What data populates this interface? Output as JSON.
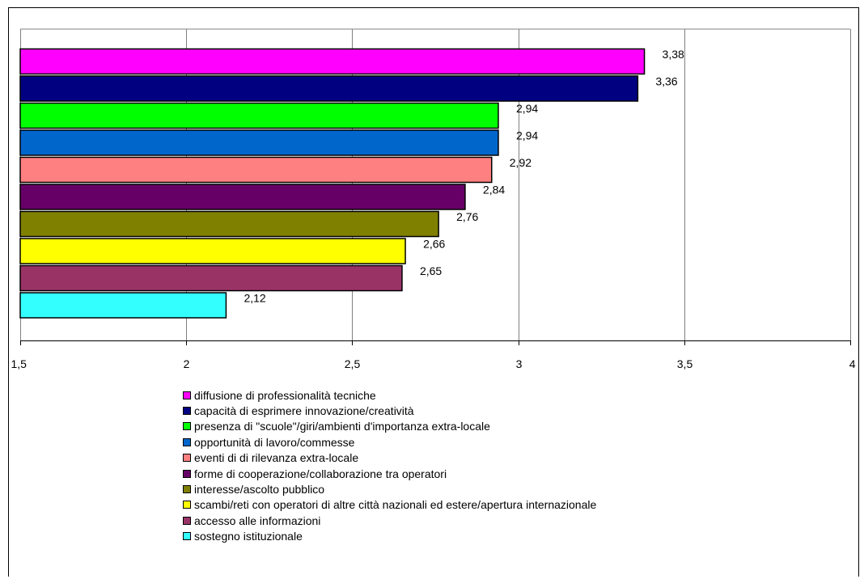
{
  "chart_data": {
    "type": "bar",
    "orientation": "horizontal",
    "title": "",
    "xlabel": "",
    "ylabel": "",
    "xlim": [
      1.5,
      4
    ],
    "xticks": [
      1.5,
      2,
      2.5,
      3,
      3.5,
      4
    ],
    "xtick_labels": [
      "1,5",
      "2",
      "2,5",
      "3",
      "3,5",
      "4"
    ],
    "grid": "vertical",
    "legend_position": "bottom",
    "series": [
      {
        "name": "diffusione di professionalità tecniche",
        "value": 3.38,
        "label": "3,38",
        "color": "#ff00ff"
      },
      {
        "name": "capacità di esprimere innovazione/creatività",
        "value": 3.36,
        "label": "3,36",
        "color": "#000080"
      },
      {
        "name": "presenza di \"scuole\"/giri/ambienti d'importanza extra-locale",
        "value": 2.94,
        "label": "2,94",
        "color": "#00ff00"
      },
      {
        "name": "opportunità di lavoro/commesse",
        "value": 2.94,
        "label": "2,94",
        "color": "#0066cc"
      },
      {
        "name": "eventi di di rilevanza extra-locale",
        "value": 2.92,
        "label": "2,92",
        "color": "#ff8080"
      },
      {
        "name": "forme di cooperazione/collaborazione tra operatori",
        "value": 2.84,
        "label": "2,84",
        "color": "#660066"
      },
      {
        "name": "interesse/ascolto pubblico",
        "value": 2.76,
        "label": "2,76",
        "color": "#808000"
      },
      {
        "name": "scambi/reti con operatori di altre città nazionali ed estere/apertura internazionale",
        "value": 2.66,
        "label": "2,66",
        "color": "#ffff00"
      },
      {
        "name": "accesso alle informazioni",
        "value": 2.65,
        "label": "2,65",
        "color": "#993366"
      },
      {
        "name": "sostegno istituzionale",
        "value": 2.12,
        "label": "2,12",
        "color": "#33ffff"
      }
    ]
  }
}
